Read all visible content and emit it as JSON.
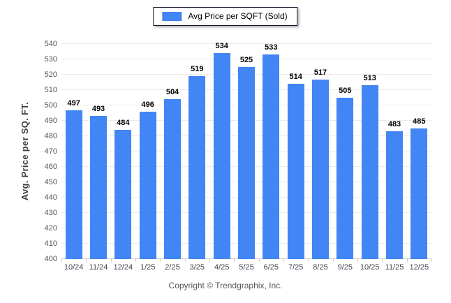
{
  "legend": {
    "label": "Avg Price per SQFT (Sold)"
  },
  "chart_data": {
    "type": "bar",
    "title": "",
    "xlabel": "",
    "ylabel": "Avg. Price per SQ. FT.",
    "categories": [
      "10/24",
      "11/24",
      "12/24",
      "1/25",
      "2/25",
      "3/25",
      "4/25",
      "5/25",
      "6/25",
      "7/25",
      "8/25",
      "9/25",
      "10/25",
      "11/25",
      "12/25"
    ],
    "values": [
      497,
      493,
      484,
      496,
      504,
      519,
      534,
      525,
      533,
      514,
      517,
      505,
      513,
      483,
      485
    ],
    "series_name": "Avg Price per SQFT (Sold)",
    "ylim": [
      400,
      540
    ],
    "ytick_step": 10,
    "grid": true,
    "legend_position": "top-center",
    "bar_color": "#4285f4"
  },
  "colors": {
    "bar": "#4285f4",
    "gridline": "#edebe6",
    "tick_label": "#575550",
    "value_label": "#000000",
    "footer_text": "#595959",
    "legend_border": "#14142e",
    "background": "#ffffff"
  },
  "footer": {
    "copyright": "Copyright © Trendgraphix, Inc."
  }
}
